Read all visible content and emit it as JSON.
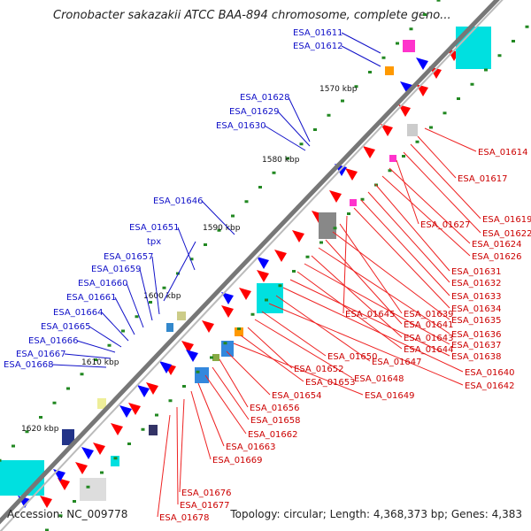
{
  "title": "Cronobacter sakazakii ATCC BAA-894 chromosome, complete geno...",
  "footer": {
    "accession": "Accession: NC_009778",
    "stats": "Topology: circular; Length: 4,368,373 bp; Genes: 4,383"
  },
  "ticks": [
    "1570 kbp",
    "1580 kbp",
    "1590 kbp",
    "1600 kbp",
    "1610 kbp",
    "1620 kbp"
  ],
  "left_labels": [
    "ESA_01611",
    "ESA_01612",
    "ESA_01628",
    "ESA_01629",
    "ESA_01630",
    "ESA_01646",
    "ESA_01651",
    "tpx",
    "ESA_01657",
    "ESA_01659",
    "ESA_01660",
    "ESA_01661",
    "ESA_01664",
    "ESA_01665",
    "ESA_01666",
    "ESA_01667",
    "ESA_01668"
  ],
  "right_labels": [
    "ESA_01614",
    "ESA_01617",
    "ESA_01619",
    "ESA_01622",
    "ESA_01627",
    "ESA_01624",
    "ESA_01626",
    "ESA_01631",
    "ESA_01632",
    "ESA_01633",
    "ESA_01634",
    "ESA_01645",
    "ESA_01639",
    "ESA_01635",
    "ESA_01641",
    "ESA_01636",
    "ESA_01643",
    "ESA_01637",
    "ESA_01644",
    "ESA_01638",
    "ESA_01640",
    "ESA_01647",
    "ESA_01642",
    "ESA_01650",
    "ESA_01648",
    "ESA_01652",
    "ESA_01653",
    "ESA_01649",
    "ESA_01654",
    "ESA_01656",
    "ESA_01658",
    "ESA_01662",
    "ESA_01663",
    "ESA_01669",
    "ESA_01676",
    "ESA_01677",
    "ESA_01678"
  ],
  "colors": {
    "forward": "#ff0000",
    "reverse": "#0000ff",
    "backbone": "#777777",
    "left_label": "#1010c8",
    "right_label": "#cc0000"
  }
}
